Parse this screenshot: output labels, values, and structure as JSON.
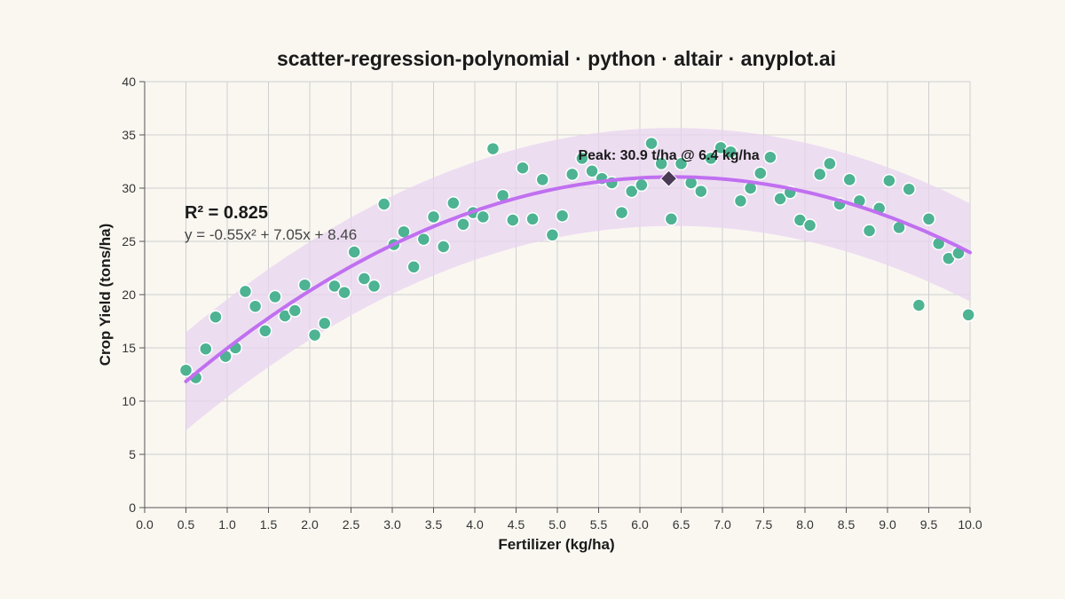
{
  "chart_data": {
    "type": "scatter",
    "title": "scatter-regression-polynomial · python · altair · anyplot.ai",
    "xlabel": "Fertilizer (kg/ha)",
    "ylabel": "Crop Yield (tons/ha)",
    "xlim": [
      0,
      10
    ],
    "ylim": [
      0,
      40
    ],
    "x_ticks": [
      "0.0",
      "0.5",
      "1.0",
      "1.5",
      "2.0",
      "2.5",
      "3.0",
      "3.5",
      "4.0",
      "4.5",
      "5.0",
      "5.5",
      "6.0",
      "6.5",
      "7.0",
      "7.5",
      "8.0",
      "8.5",
      "9.0",
      "9.5",
      "10.0"
    ],
    "y_ticks": [
      "0",
      "5",
      "10",
      "15",
      "20",
      "25",
      "30",
      "35",
      "40"
    ],
    "grid": true,
    "colors": {
      "points": "#45b08c",
      "point_stroke": "#ffffff",
      "curve": "#c070f0",
      "band": "#e8d4f0",
      "peak_marker": "#4a3a55"
    },
    "regression": {
      "degree": 2,
      "a": -0.55,
      "b": 7.05,
      "c": 8.46,
      "x_range": [
        0.5,
        10.0
      ],
      "band_halfwidth": 4.6,
      "r2_label": "R² = 0.825",
      "equation_label": "y = -0.55x² + 7.05x + 8.46"
    },
    "peak": {
      "x": 6.35,
      "y": 30.9,
      "label": "Peak: 30.9 t/ha @ 6.4 kg/ha"
    },
    "points": [
      {
        "x": 0.5,
        "y": 12.9
      },
      {
        "x": 0.62,
        "y": 12.2
      },
      {
        "x": 0.74,
        "y": 14.9
      },
      {
        "x": 0.86,
        "y": 17.9
      },
      {
        "x": 0.98,
        "y": 14.2
      },
      {
        "x": 1.1,
        "y": 15.0
      },
      {
        "x": 1.22,
        "y": 20.3
      },
      {
        "x": 1.34,
        "y": 18.9
      },
      {
        "x": 1.46,
        "y": 16.6
      },
      {
        "x": 1.58,
        "y": 19.8
      },
      {
        "x": 1.7,
        "y": 18.0
      },
      {
        "x": 1.82,
        "y": 18.5
      },
      {
        "x": 1.94,
        "y": 20.9
      },
      {
        "x": 2.06,
        "y": 16.2
      },
      {
        "x": 2.18,
        "y": 17.3
      },
      {
        "x": 2.3,
        "y": 20.8
      },
      {
        "x": 2.42,
        "y": 20.2
      },
      {
        "x": 2.54,
        "y": 24.0
      },
      {
        "x": 2.66,
        "y": 21.5
      },
      {
        "x": 2.78,
        "y": 20.8
      },
      {
        "x": 2.9,
        "y": 28.5
      },
      {
        "x": 3.02,
        "y": 24.7
      },
      {
        "x": 3.14,
        "y": 25.9
      },
      {
        "x": 3.26,
        "y": 22.6
      },
      {
        "x": 3.38,
        "y": 25.2
      },
      {
        "x": 3.5,
        "y": 27.3
      },
      {
        "x": 3.62,
        "y": 24.5
      },
      {
        "x": 3.74,
        "y": 28.6
      },
      {
        "x": 3.86,
        "y": 26.6
      },
      {
        "x": 3.98,
        "y": 27.7
      },
      {
        "x": 4.1,
        "y": 27.3
      },
      {
        "x": 4.22,
        "y": 33.7
      },
      {
        "x": 4.34,
        "y": 29.3
      },
      {
        "x": 4.46,
        "y": 27.0
      },
      {
        "x": 4.58,
        "y": 31.9
      },
      {
        "x": 4.7,
        "y": 27.1
      },
      {
        "x": 4.82,
        "y": 30.8
      },
      {
        "x": 4.94,
        "y": 25.6
      },
      {
        "x": 5.06,
        "y": 27.4
      },
      {
        "x": 5.18,
        "y": 31.3
      },
      {
        "x": 5.3,
        "y": 32.8
      },
      {
        "x": 5.42,
        "y": 31.6
      },
      {
        "x": 5.54,
        "y": 30.9
      },
      {
        "x": 5.66,
        "y": 30.5
      },
      {
        "x": 5.78,
        "y": 27.7
      },
      {
        "x": 5.9,
        "y": 29.7
      },
      {
        "x": 6.02,
        "y": 30.3
      },
      {
        "x": 6.14,
        "y": 34.2
      },
      {
        "x": 6.26,
        "y": 32.3
      },
      {
        "x": 6.38,
        "y": 27.1
      },
      {
        "x": 6.5,
        "y": 32.3
      },
      {
        "x": 6.62,
        "y": 30.5
      },
      {
        "x": 6.74,
        "y": 29.7
      },
      {
        "x": 6.86,
        "y": 32.8
      },
      {
        "x": 6.98,
        "y": 33.8
      },
      {
        "x": 7.1,
        "y": 33.4
      },
      {
        "x": 7.22,
        "y": 28.8
      },
      {
        "x": 7.34,
        "y": 30.0
      },
      {
        "x": 7.46,
        "y": 31.4
      },
      {
        "x": 7.58,
        "y": 32.9
      },
      {
        "x": 7.7,
        "y": 29.0
      },
      {
        "x": 7.82,
        "y": 29.6
      },
      {
        "x": 7.94,
        "y": 27.0
      },
      {
        "x": 8.06,
        "y": 26.5
      },
      {
        "x": 8.18,
        "y": 31.3
      },
      {
        "x": 8.3,
        "y": 32.3
      },
      {
        "x": 8.42,
        "y": 28.5
      },
      {
        "x": 8.54,
        "y": 30.8
      },
      {
        "x": 8.66,
        "y": 28.8
      },
      {
        "x": 8.78,
        "y": 26.0
      },
      {
        "x": 8.9,
        "y": 28.1
      },
      {
        "x": 9.02,
        "y": 30.7
      },
      {
        "x": 9.14,
        "y": 26.3
      },
      {
        "x": 9.26,
        "y": 29.9
      },
      {
        "x": 9.38,
        "y": 19.0
      },
      {
        "x": 9.5,
        "y": 27.1
      },
      {
        "x": 9.62,
        "y": 24.8
      },
      {
        "x": 9.74,
        "y": 23.4
      },
      {
        "x": 9.86,
        "y": 23.9
      },
      {
        "x": 9.98,
        "y": 18.1
      }
    ]
  }
}
